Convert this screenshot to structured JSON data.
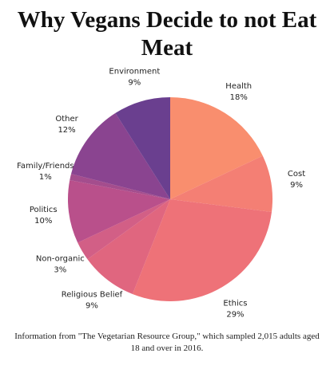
{
  "chart_data": {
    "type": "pie",
    "title": "Why Vegans Decide to not Eat Meat",
    "categories": [
      "Health",
      "Cost",
      "Ethics",
      "Religious Belief",
      "Non-organic",
      "Politics",
      "Family/Friends",
      "Other",
      "Environment"
    ],
    "values": [
      18,
      9,
      29,
      9,
      3,
      10,
      1,
      12,
      9
    ],
    "value_labels": [
      "18%",
      "9%",
      "29%",
      "9%",
      "3%",
      "10%",
      "1%",
      "12%",
      "9%"
    ],
    "colors": [
      "#f98e6e",
      "#f47f74",
      "#ee7278",
      "#e0667f",
      "#d25f86",
      "#b9508b",
      "#a44d8d",
      "#8a4490",
      "#6a3f8f"
    ],
    "footnote": "Information from \"The Vegetarian Resource Group,\" which sampled 2,015 adults aged 18 and over in 2016."
  }
}
